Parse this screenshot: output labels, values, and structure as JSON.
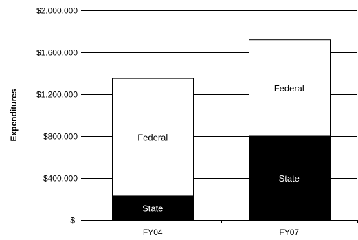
{
  "chart_data": {
    "type": "bar",
    "stacked": true,
    "categories": [
      "FY04",
      "FY07"
    ],
    "series": [
      {
        "name": "State",
        "values": [
          230000,
          800000
        ],
        "color": "#000000",
        "label_color": "#ffffff"
      },
      {
        "name": "Federal",
        "values": [
          1120000,
          920000
        ],
        "color": "#ffffff",
        "label_color": "#000000"
      }
    ],
    "ylabel": "Expenditures",
    "xlabel": "",
    "ylim": [
      0,
      2000000
    ],
    "yticks": [
      0,
      400000,
      800000,
      1200000,
      1600000,
      2000000
    ],
    "ytick_labels": [
      "$-",
      "$400,000",
      "$800,000",
      "$1,200,000",
      "$1,600,000",
      "$2,000,000"
    ],
    "grid": true,
    "legend": "none (segment labels inside bars)"
  }
}
